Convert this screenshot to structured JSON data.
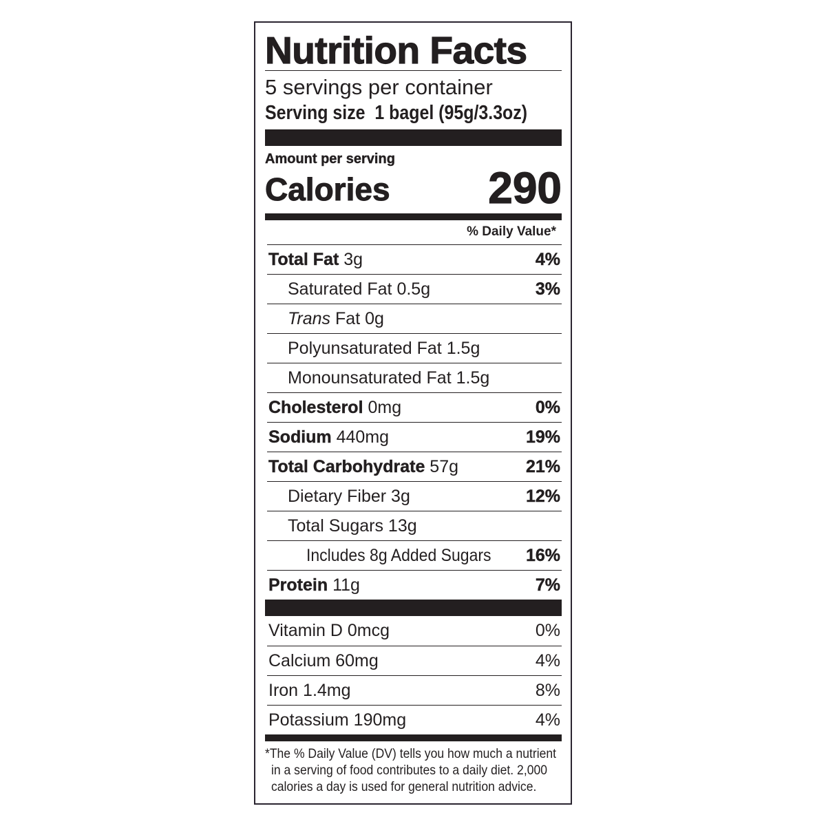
{
  "title": "Nutrition Facts",
  "servings_per_container": "5 servings per container",
  "serving_size": {
    "label": "Serving size",
    "value": "1 bagel (95g/3.3oz)"
  },
  "amount_per_serving": "Amount per serving",
  "calories": {
    "label": "Calories",
    "value": "290"
  },
  "daily_value_header": "% Daily Value*",
  "nutrients": [
    {
      "name": "Total Fat",
      "amount": "3g",
      "dv": "4%"
    },
    {
      "name": "Saturated Fat",
      "amount": "0.5g",
      "dv": "3%"
    },
    {
      "name": "Trans",
      "name_rest": "Fat",
      "amount": "0g",
      "dv": ""
    },
    {
      "name": "Polyunsaturated Fat",
      "amount": "1.5g",
      "dv": ""
    },
    {
      "name": "Monounsaturated Fat",
      "amount": "1.5g",
      "dv": ""
    },
    {
      "name": "Cholesterol",
      "amount": "0mg",
      "dv": "0%"
    },
    {
      "name": "Sodium",
      "amount": "440mg",
      "dv": "19%"
    },
    {
      "name": "Total Carbohydrate",
      "amount": "57g",
      "dv": "21%"
    },
    {
      "name": "Dietary Fiber",
      "amount": "3g",
      "dv": "12%"
    },
    {
      "name": "Total Sugars",
      "amount": "13g",
      "dv": ""
    },
    {
      "name": "Includes 8g Added Sugars",
      "amount": "",
      "dv": "16%"
    },
    {
      "name": "Protein",
      "amount": "11g",
      "dv": "7%"
    }
  ],
  "vitamins": [
    {
      "name": "Vitamin D",
      "amount": "0mcg",
      "dv": "0%"
    },
    {
      "name": "Calcium",
      "amount": "60mg",
      "dv": "4%"
    },
    {
      "name": "Iron",
      "amount": "1.4mg",
      "dv": "8%"
    },
    {
      "name": "Potassium",
      "amount": "190mg",
      "dv": "4%"
    }
  ],
  "footnote": [
    "*The % Daily Value (DV) tells you how much a nutrient",
    "in a serving of food contributes to a daily diet. 2,000",
    "calories a day is used for general nutrition advice."
  ]
}
